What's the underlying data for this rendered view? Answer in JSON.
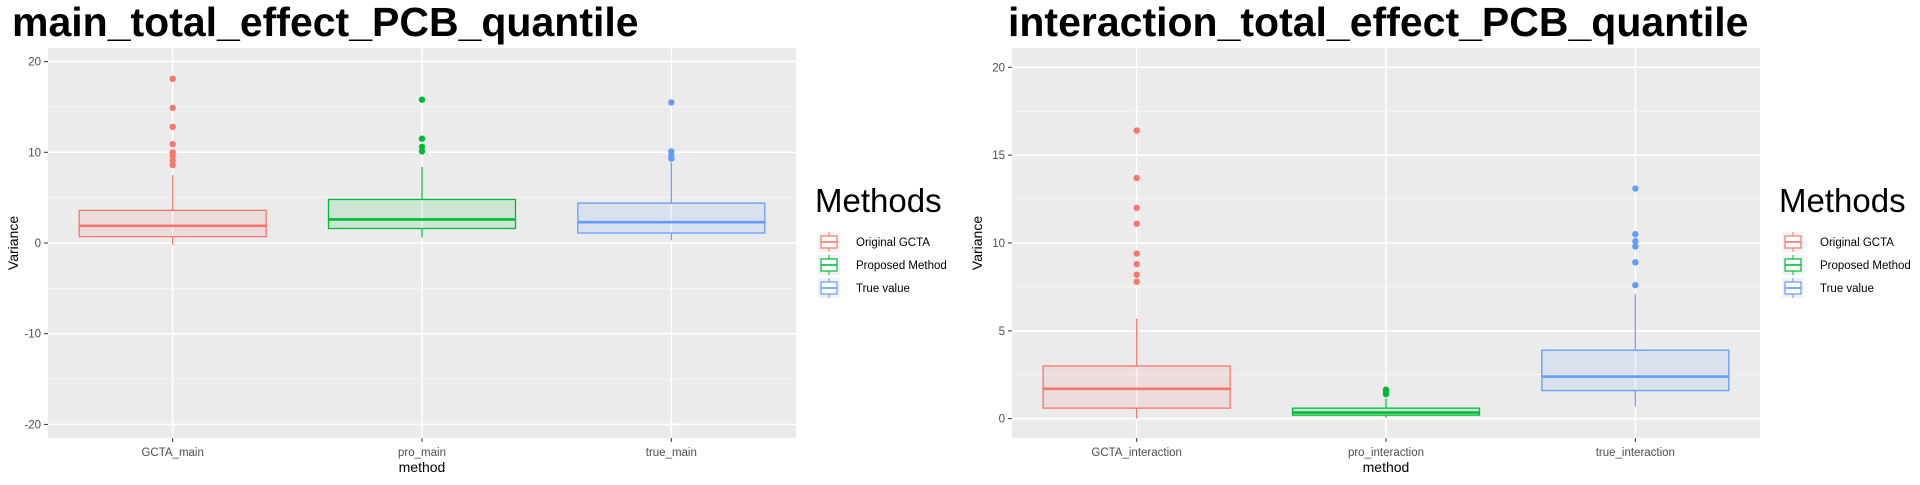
{
  "chart_data": [
    {
      "type": "boxplot",
      "title": "main_total_effect_PCB_quantile",
      "xlabel": "method",
      "ylabel": "Variance",
      "ylim": [
        -21.5,
        21.5
      ],
      "yticks": [
        20,
        10,
        0,
        -10,
        -20
      ],
      "categories": [
        "GCTA_main",
        "pro_main",
        "true_main"
      ],
      "legend": {
        "title": "Methods",
        "entries": [
          "Original GCTA",
          "Proposed Method",
          "True value"
        ],
        "position": "right"
      },
      "grid": true,
      "boxes": [
        {
          "category": "GCTA_main",
          "series": "Original GCTA",
          "color": "#F8766D",
          "whisker_low": -0.2,
          "q1": 0.7,
          "median": 1.9,
          "q3": 3.6,
          "whisker_high": 7.5,
          "outliers": [
            18.1,
            14.9,
            12.8,
            10.9,
            10.0,
            9.6,
            9.1,
            8.6
          ]
        },
        {
          "category": "pro_main",
          "series": "Proposed Method",
          "color": "#00BA38",
          "whisker_low": 0.6,
          "q1": 1.6,
          "median": 2.6,
          "q3": 4.8,
          "whisker_high": 8.4,
          "outliers": [
            15.8,
            11.5,
            10.6,
            10.1
          ]
        },
        {
          "category": "true_main",
          "series": "True value",
          "color": "#619CFF",
          "whisker_low": 0.3,
          "q1": 1.1,
          "median": 2.3,
          "q3": 4.4,
          "whisker_high": 8.9,
          "outliers": [
            15.5,
            10.1,
            9.6,
            9.3
          ]
        }
      ]
    },
    {
      "type": "boxplot",
      "title": "interaction_total_effect_PCB_quantile",
      "xlabel": "method",
      "ylabel": "Variance",
      "ylim": [
        -1.1,
        21.1
      ],
      "yticks": [
        20,
        15,
        10,
        5,
        0
      ],
      "categories": [
        "GCTA_interaction",
        "pro_interaction",
        "true_interaction"
      ],
      "legend": {
        "title": "Methods",
        "entries": [
          "Original GCTA",
          "Proposed Method",
          "True value"
        ],
        "position": "right"
      },
      "grid": true,
      "boxes": [
        {
          "category": "GCTA_interaction",
          "series": "Original GCTA",
          "color": "#F8766D",
          "whisker_low": 0.0,
          "q1": 0.6,
          "median": 1.7,
          "q3": 3.0,
          "whisker_high": 5.7,
          "outliers": [
            16.4,
            13.7,
            12.0,
            11.1,
            9.4,
            8.8,
            8.2,
            7.8
          ]
        },
        {
          "category": "pro_interaction",
          "series": "Proposed Method",
          "color": "#00BA38",
          "whisker_low": 0.05,
          "q1": 0.2,
          "median": 0.35,
          "q3": 0.6,
          "whisker_high": 1.15,
          "outliers": [
            1.65,
            1.5,
            1.4
          ]
        },
        {
          "category": "true_interaction",
          "series": "True value",
          "color": "#619CFF",
          "whisker_low": 0.7,
          "q1": 1.6,
          "median": 2.4,
          "q3": 3.9,
          "whisker_high": 7.1,
          "outliers": [
            13.1,
            10.5,
            10.1,
            9.8,
            8.9,
            7.6
          ]
        }
      ]
    }
  ]
}
